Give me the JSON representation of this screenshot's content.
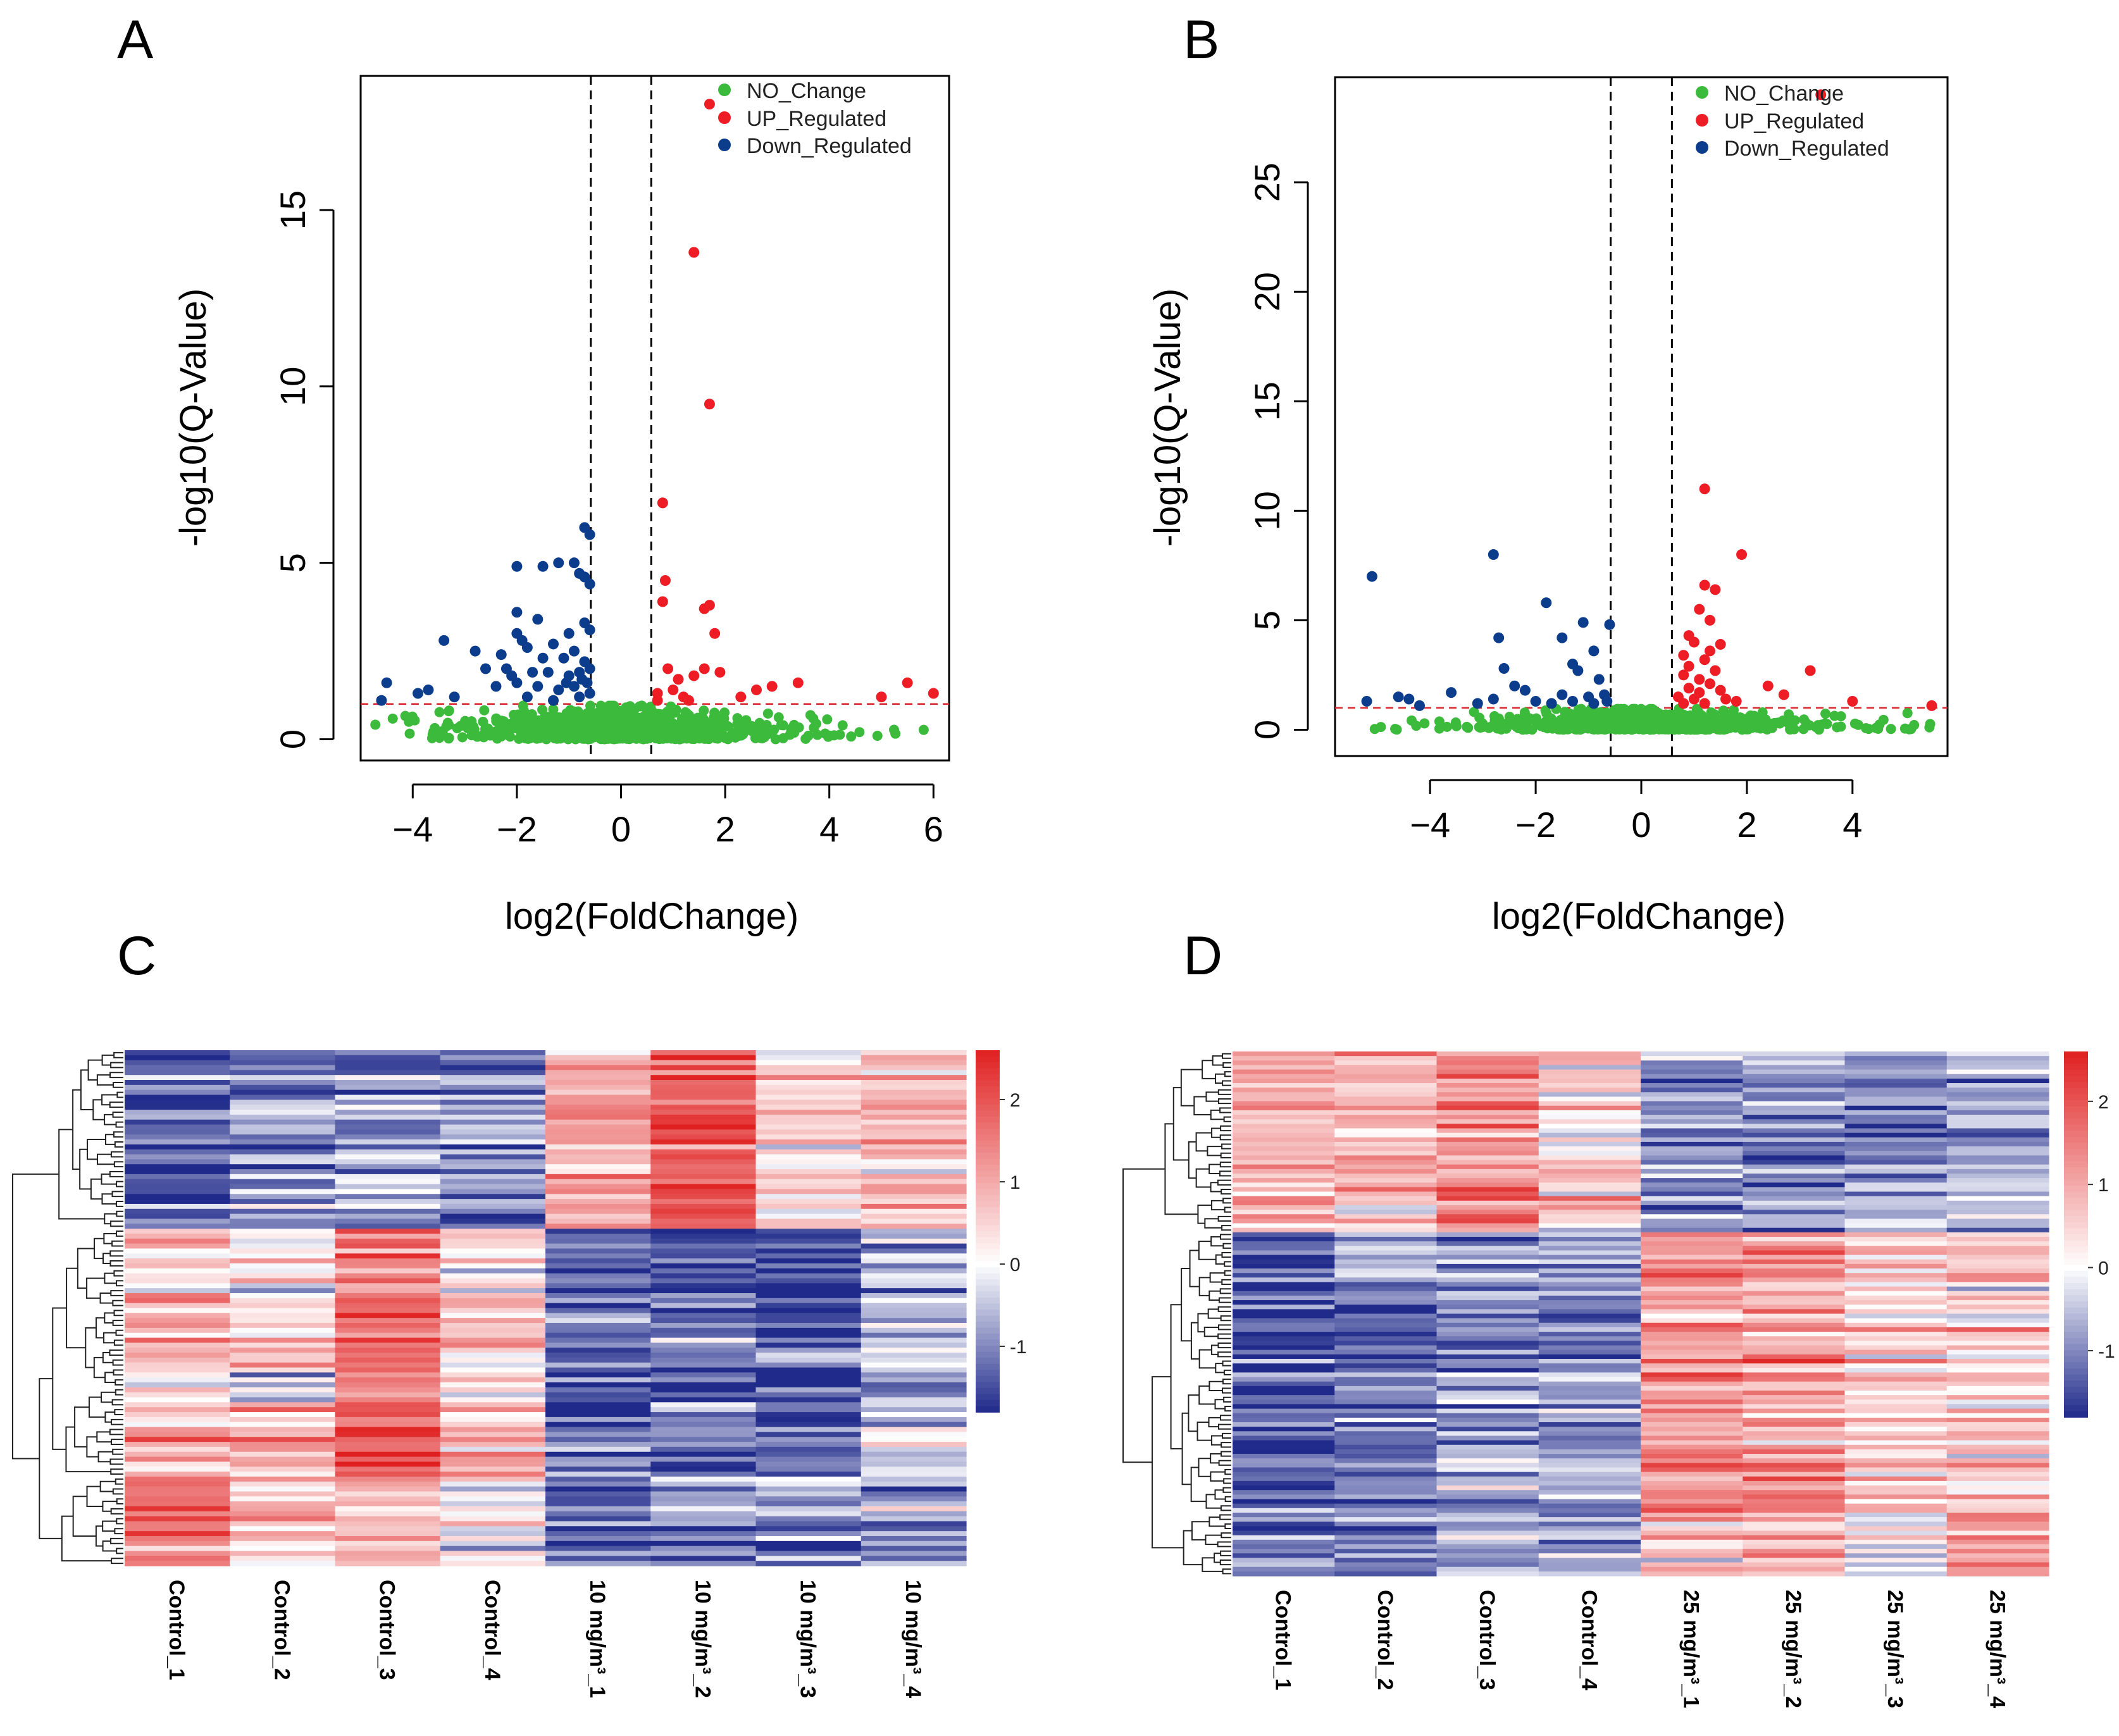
{
  "panels": [
    {
      "id": "A",
      "label": "A",
      "chart_data": {
        "type": "scatter",
        "title": "",
        "xlabel": "log2(FoldChange)",
        "ylabel": "-log10(Q-Value)",
        "xlim": [
          -5,
          6.3
        ],
        "ylim": [
          -0.6,
          18.8
        ],
        "xticks": [
          -4,
          -2,
          0,
          2,
          4,
          6
        ],
        "yticks": [
          0,
          5,
          10,
          15
        ],
        "fc_threshold": 0.58,
        "q_threshold": 1.0,
        "legend": [
          {
            "name": "NO_Change",
            "color": "#3cba3c"
          },
          {
            "name": "UP_Regulated",
            "color": "#ee1c24"
          },
          {
            "name": "Down_Regulated",
            "color": "#0c3c8c"
          }
        ],
        "up_points": [
          [
            1.7,
            18
          ],
          [
            1.4,
            13.8
          ],
          [
            1.7,
            9.5
          ],
          [
            0.8,
            6.7
          ],
          [
            0.85,
            4.5
          ],
          [
            0.8,
            3.9
          ],
          [
            1.6,
            3.7
          ],
          [
            1.7,
            3.8
          ],
          [
            1.8,
            3.0
          ],
          [
            0.9,
            2.0
          ],
          [
            1.1,
            1.7
          ],
          [
            1.4,
            1.8
          ],
          [
            1.6,
            2.0
          ],
          [
            1.9,
            1.9
          ],
          [
            2.3,
            1.2
          ],
          [
            2.6,
            1.4
          ],
          [
            2.9,
            1.5
          ],
          [
            3.4,
            1.6
          ],
          [
            5.0,
            1.2
          ],
          [
            5.5,
            1.6
          ],
          [
            6.0,
            1.3
          ],
          [
            0.7,
            1.3
          ],
          [
            1.2,
            1.2
          ],
          [
            1.0,
            1.4
          ],
          [
            0.7,
            1.1
          ],
          [
            1.3,
            1.1
          ]
        ],
        "down_points": [
          [
            -0.7,
            6.0
          ],
          [
            -0.6,
            5.8
          ],
          [
            -1.2,
            5.0
          ],
          [
            -0.9,
            5.0
          ],
          [
            -2.0,
            4.9
          ],
          [
            -1.5,
            4.9
          ],
          [
            -0.8,
            4.7
          ],
          [
            -0.7,
            4.6
          ],
          [
            -0.6,
            4.4
          ],
          [
            -2.0,
            3.6
          ],
          [
            -1.6,
            3.4
          ],
          [
            -0.7,
            3.3
          ],
          [
            -0.6,
            3.1
          ],
          [
            -1.0,
            3.0
          ],
          [
            -2.0,
            3.0
          ],
          [
            -1.9,
            2.8
          ],
          [
            -1.3,
            2.7
          ],
          [
            -3.4,
            2.8
          ],
          [
            -2.8,
            2.5
          ],
          [
            -2.3,
            2.4
          ],
          [
            -1.8,
            2.6
          ],
          [
            -1.5,
            2.3
          ],
          [
            -1.1,
            2.3
          ],
          [
            -0.9,
            2.5
          ],
          [
            -0.7,
            2.2
          ],
          [
            -2.6,
            2.0
          ],
          [
            -2.2,
            2.0
          ],
          [
            -1.7,
            1.9
          ],
          [
            -1.4,
            1.9
          ],
          [
            -1.0,
            1.8
          ],
          [
            -0.8,
            1.9
          ],
          [
            -0.6,
            2.0
          ],
          [
            -4.5,
            1.6
          ],
          [
            -3.9,
            1.3
          ],
          [
            -3.7,
            1.4
          ],
          [
            -2.4,
            1.5
          ],
          [
            -2.0,
            1.6
          ],
          [
            -1.6,
            1.5
          ],
          [
            -1.2,
            1.4
          ],
          [
            -0.9,
            1.5
          ],
          [
            -0.65,
            1.6
          ],
          [
            -4.6,
            1.1
          ],
          [
            -3.2,
            1.2
          ],
          [
            -1.8,
            1.2
          ],
          [
            -1.3,
            1.1
          ],
          [
            -0.8,
            1.2
          ],
          [
            -0.6,
            1.3
          ],
          [
            -2.1,
            1.8
          ],
          [
            -0.75,
            1.7
          ],
          [
            -1.05,
            1.6
          ]
        ]
      }
    },
    {
      "id": "B",
      "label": "B",
      "chart_data": {
        "type": "scatter",
        "title": "",
        "xlabel": "log2(FoldChange)",
        "ylabel": "-log10(Q-Value)",
        "xlim": [
          -5.8,
          5.8
        ],
        "ylim": [
          -1.2,
          29.8
        ],
        "xticks": [
          -4,
          -2,
          0,
          2,
          4
        ],
        "yticks": [
          0,
          5,
          10,
          15,
          20,
          25
        ],
        "fc_threshold": 0.58,
        "q_threshold": 1.0,
        "legend": [
          {
            "name": "NO_Change",
            "color": "#3cba3c"
          },
          {
            "name": "UP_Regulated",
            "color": "#ee1c24"
          },
          {
            "name": "Down_Regulated",
            "color": "#0c3c8c"
          }
        ],
        "up_points": [
          [
            3.4,
            29
          ],
          [
            1.2,
            11
          ],
          [
            1.9,
            8.0
          ],
          [
            1.2,
            6.6
          ],
          [
            1.4,
            6.4
          ],
          [
            1.1,
            5.5
          ],
          [
            1.3,
            5.0
          ],
          [
            0.9,
            4.3
          ],
          [
            1.0,
            4.0
          ],
          [
            1.3,
            3.6
          ],
          [
            0.8,
            3.4
          ],
          [
            1.2,
            3.2
          ],
          [
            0.9,
            2.9
          ],
          [
            1.4,
            2.7
          ],
          [
            0.8,
            2.5
          ],
          [
            1.1,
            2.3
          ],
          [
            1.3,
            2.1
          ],
          [
            3.2,
            2.7
          ],
          [
            2.4,
            2.0
          ],
          [
            2.7,
            1.6
          ],
          [
            0.9,
            1.9
          ],
          [
            1.5,
            1.8
          ],
          [
            0.7,
            1.5
          ],
          [
            1.0,
            1.4
          ],
          [
            1.6,
            1.4
          ],
          [
            1.8,
            1.3
          ],
          [
            0.8,
            1.2
          ],
          [
            1.2,
            1.2
          ],
          [
            4.0,
            1.3
          ],
          [
            5.5,
            1.1
          ],
          [
            1.1,
            1.7
          ],
          [
            1.5,
            3.9
          ]
        ],
        "down_points": [
          [
            -5.1,
            7.0
          ],
          [
            -2.8,
            8.0
          ],
          [
            -1.8,
            5.8
          ],
          [
            -1.1,
            4.9
          ],
          [
            -0.6,
            4.8
          ],
          [
            -1.5,
            4.2
          ],
          [
            -0.9,
            3.6
          ],
          [
            -2.7,
            4.2
          ],
          [
            -1.3,
            3.0
          ],
          [
            -2.6,
            2.8
          ],
          [
            -1.2,
            2.7
          ],
          [
            -0.8,
            2.3
          ],
          [
            -2.4,
            2.0
          ],
          [
            -2.2,
            1.8
          ],
          [
            -1.5,
            1.6
          ],
          [
            -1.0,
            1.5
          ],
          [
            -0.7,
            1.6
          ],
          [
            -4.6,
            1.5
          ],
          [
            -4.4,
            1.4
          ],
          [
            -4.2,
            1.1
          ],
          [
            -3.6,
            1.7
          ],
          [
            -3.1,
            1.2
          ],
          [
            -2.8,
            1.4
          ],
          [
            -1.7,
            1.2
          ],
          [
            -1.3,
            1.3
          ],
          [
            -0.9,
            1.2
          ],
          [
            -5.2,
            1.3
          ],
          [
            -2.0,
            1.3
          ],
          [
            -0.65,
            1.3
          ]
        ]
      }
    },
    {
      "id": "C",
      "label": "C",
      "chart_data": {
        "type": "heatmap",
        "title": "",
        "columns": [
          "Control_1",
          "Control_2",
          "Control_3",
          "Control_4",
          "10 mg/m³_1",
          "10 mg/m³_2",
          "10 mg/m³_3",
          "10 mg/m³_4"
        ],
        "legend_ticks": [
          2,
          1,
          0,
          -1
        ],
        "value_range": [
          -1.8,
          2.6
        ],
        "colors": {
          "low": "#1f2a8a",
          "mid": "#ffffff",
          "high": "#e02020"
        },
        "row_blocks": [
          {
            "rows": 36,
            "means": [
              -1.3,
              -1.0,
              -0.8,
              -1.0,
              0.9,
              1.9,
              0.4,
              0.9
            ]
          },
          {
            "rows": 50,
            "means": [
              0.6,
              0.4,
              1.7,
              0.5,
              -1.3,
              -1.4,
              -1.5,
              -0.7
            ]
          },
          {
            "rows": 18,
            "means": [
              1.6,
              0.3,
              0.8,
              -0.1,
              -1.4,
              -1.0,
              -1.1,
              -1.0
            ]
          }
        ]
      }
    },
    {
      "id": "D",
      "label": "D",
      "chart_data": {
        "type": "heatmap",
        "title": "",
        "columns": [
          "Control_1",
          "Control_2",
          "Control_3",
          "Control_4",
          "25 mg/m³_1",
          "25 mg/m³_2",
          "25 mg/m³_3",
          "25 mg/m³_4"
        ],
        "legend_ticks": [
          2,
          1,
          0,
          -1
        ],
        "value_range": [
          -1.8,
          2.6
        ],
        "colors": {
          "low": "#1f2a8a",
          "mid": "#ffffff",
          "high": "#e02020"
        },
        "row_blocks": [
          {
            "rows": 40,
            "means": [
              0.8,
              0.7,
              1.3,
              0.4,
              -1.0,
              -1.0,
              -1.0,
              -0.8
            ]
          },
          {
            "rows": 62,
            "means": [
              -1.4,
              -1.0,
              -0.9,
              -0.9,
              1.3,
              1.1,
              0.6,
              0.5
            ]
          },
          {
            "rows": 14,
            "means": [
              -1.2,
              -0.8,
              -0.8,
              -0.9,
              0.6,
              0.7,
              -0.2,
              1.3
            ]
          }
        ]
      }
    }
  ]
}
